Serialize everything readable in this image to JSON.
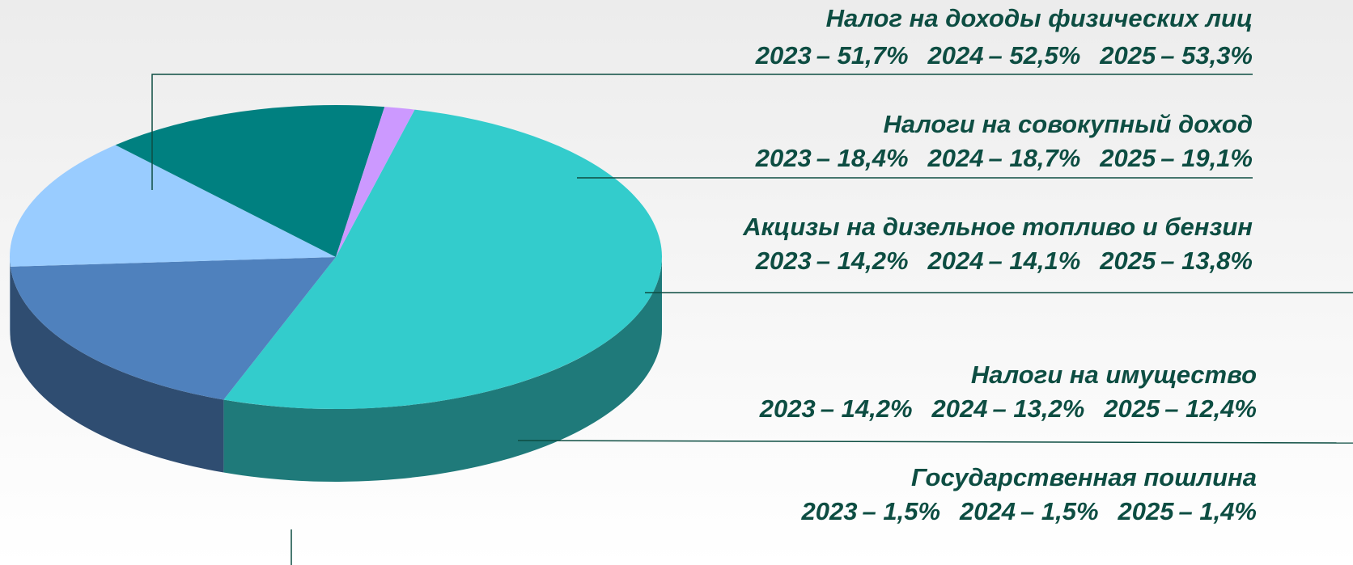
{
  "chart_data": {
    "type": "pie",
    "categories": [
      "Налог на доходы физических лиц",
      "Налоги на совокупный доход",
      "Акцизы на дизельное топливо и бензин",
      "Налоги на имущество",
      "Государственная пошлина"
    ],
    "colors": [
      "#33CCCC",
      "#4F81BD",
      "#99CCFF",
      "#008080",
      "#CC99FF"
    ],
    "series": [
      {
        "name": "2023",
        "values": [
          51.7,
          18.4,
          14.2,
          14.2,
          1.5
        ],
        "value_labels": [
          "– 51,7%",
          "– 18,4%",
          "– 14,2%",
          "– 14,2%",
          "– 1,5%"
        ]
      },
      {
        "name": "2024",
        "values": [
          52.5,
          18.7,
          14.1,
          13.2,
          1.5
        ],
        "value_labels": [
          "– 52,5%",
          "– 18,7%",
          "– 14,1%",
          "– 13,2%",
          "– 1,5%"
        ]
      },
      {
        "name": "2025",
        "values": [
          53.3,
          19.1,
          13.8,
          12.4,
          1.4
        ],
        "value_labels": [
          "– 53,3%",
          "– 19,1%",
          "– 13,8%",
          "– 12,4%",
          "– 1,4%"
        ]
      }
    ]
  }
}
